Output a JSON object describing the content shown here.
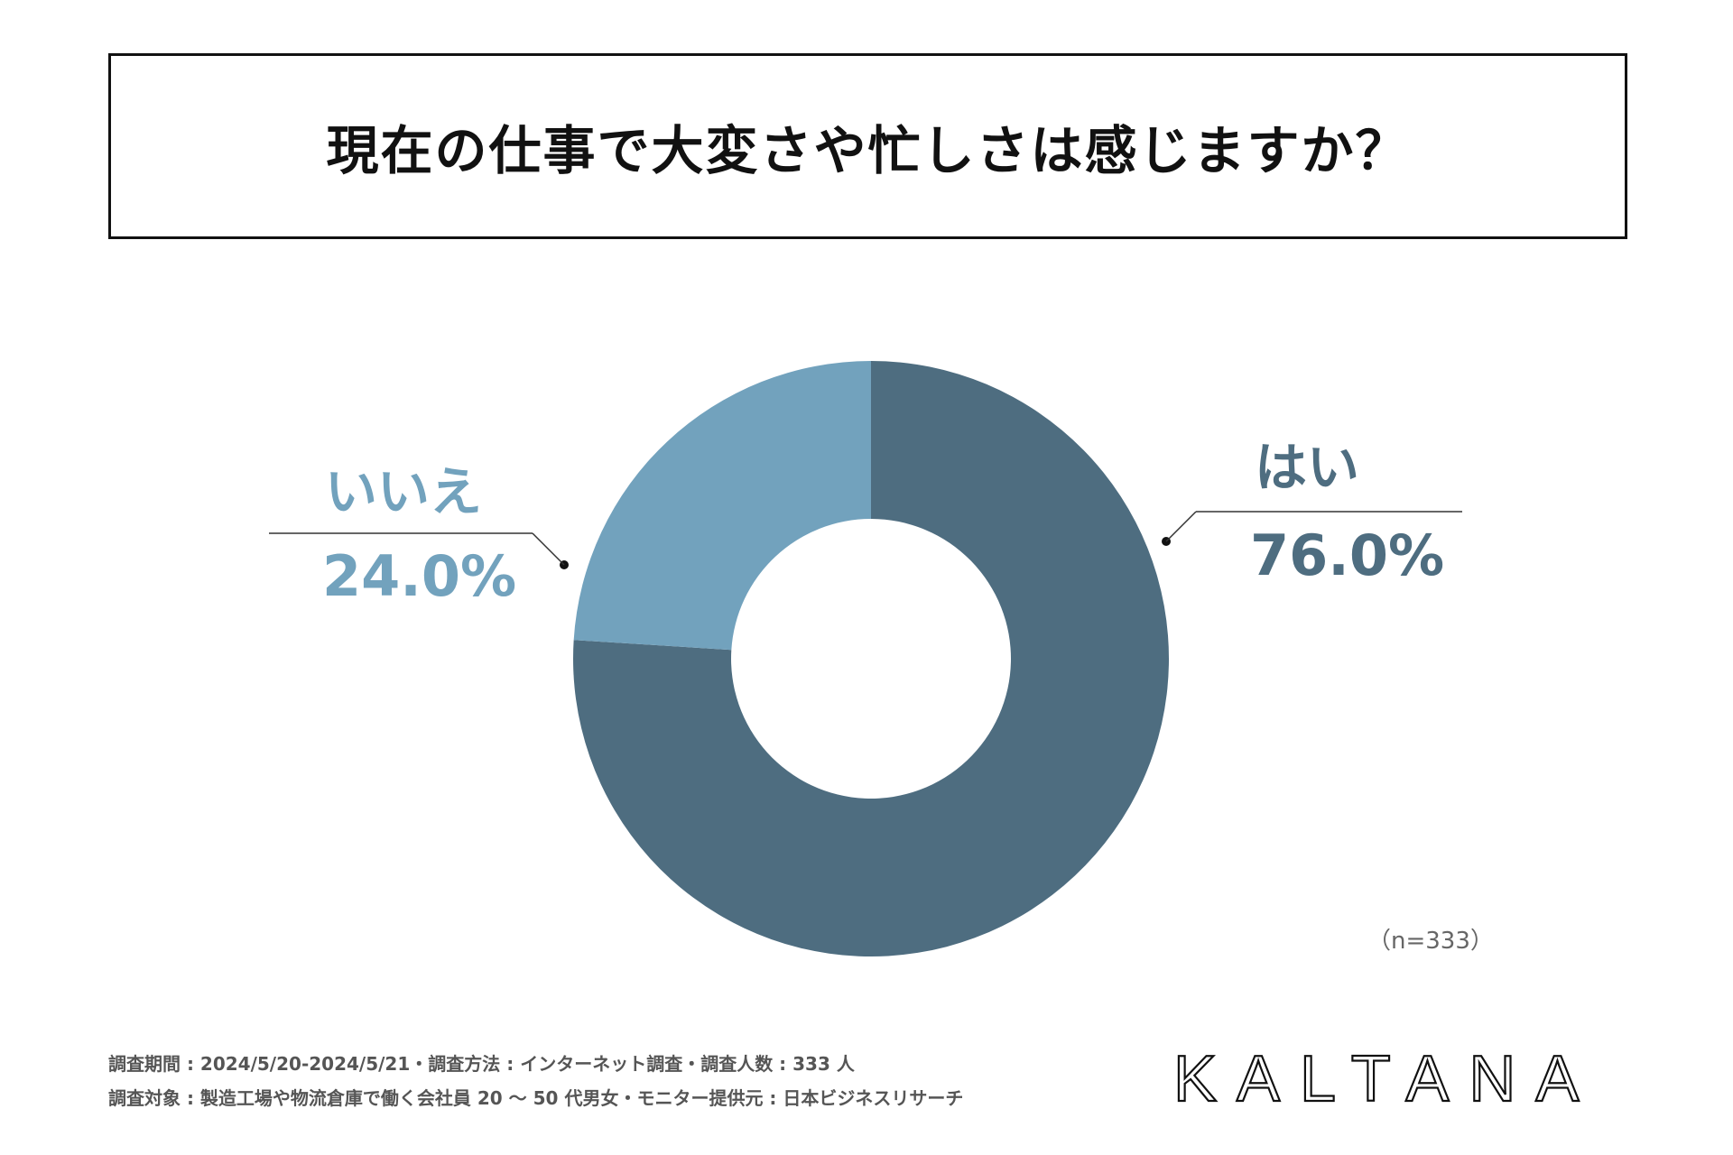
{
  "title": "現在の仕事で大変さや忙しさは感じますか？",
  "colors": {
    "yes": "#4e6d80",
    "no": "#72a2bd",
    "text": "#111111"
  },
  "chart_data": {
    "type": "pie",
    "variant": "donut",
    "categories": [
      "はい",
      "いいえ"
    ],
    "values": [
      76.0,
      24.0
    ],
    "labels": [
      "76.0%",
      "24.0%"
    ],
    "n_label": "（n=333）"
  },
  "footer": {
    "line1": "調査期間 : 2024/5/20-2024/5/21・調査方法 : インターネット調査・調査人数 : 333 人",
    "line2": "調査対象 : 製造工場や物流倉庫で働く会社員 20 〜 50 代男女・モニター提供元 : 日本ビジネスリサーチ"
  },
  "logo": "KALTANA"
}
